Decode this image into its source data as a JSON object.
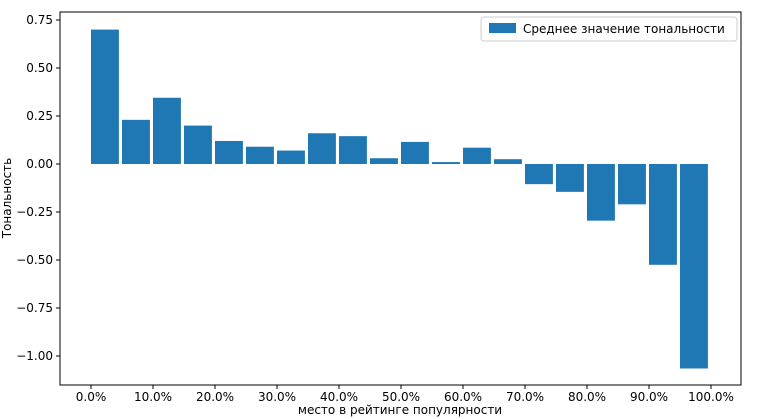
{
  "chart_data": {
    "type": "bar",
    "xlabel": "место в рейтинге популярности",
    "ylabel": "Тональность",
    "legend": {
      "placement": "top-right",
      "entries": [
        "Среднее значение тональности"
      ]
    },
    "grid": false,
    "bar_color": "#1f77b4",
    "x_axis": {
      "type": "percent",
      "ticks": [
        0,
        0.1,
        0.2,
        0.3,
        0.4,
        0.5,
        0.6,
        0.7,
        0.8,
        0.9,
        1.0
      ],
      "tick_labels": [
        "0.0%",
        "10.0%",
        "20.0%",
        "30.0%",
        "40.0%",
        "50.0%",
        "60.0%",
        "70.0%",
        "80.0%",
        "90.0%",
        "100.0%"
      ]
    },
    "y_axis": {
      "ticks": [
        0.75,
        0.5,
        0.25,
        0.0,
        -0.25,
        -0.5,
        -0.75,
        -1.0
      ],
      "tick_labels": [
        "0.75",
        "0.50",
        "0.25",
        "0.00",
        "−0.25",
        "−0.50",
        "−0.75",
        "−1.00"
      ],
      "ylim": [
        -1.1,
        0.77
      ]
    },
    "x": [
      0.0,
      0.05,
      0.1,
      0.15,
      0.2,
      0.25,
      0.3,
      0.35,
      0.4,
      0.45,
      0.5,
      0.55,
      0.6,
      0.65,
      0.7,
      0.75,
      0.8,
      0.85,
      0.9,
      0.95
    ],
    "series": [
      {
        "name": "Среднее значение тональности",
        "values": [
          0.7,
          0.23,
          0.345,
          0.2,
          0.12,
          0.09,
          0.07,
          0.16,
          0.145,
          0.03,
          0.115,
          0.01,
          0.085,
          0.025,
          -0.105,
          -0.145,
          -0.295,
          -0.21,
          -0.525,
          -1.065
        ]
      }
    ]
  }
}
